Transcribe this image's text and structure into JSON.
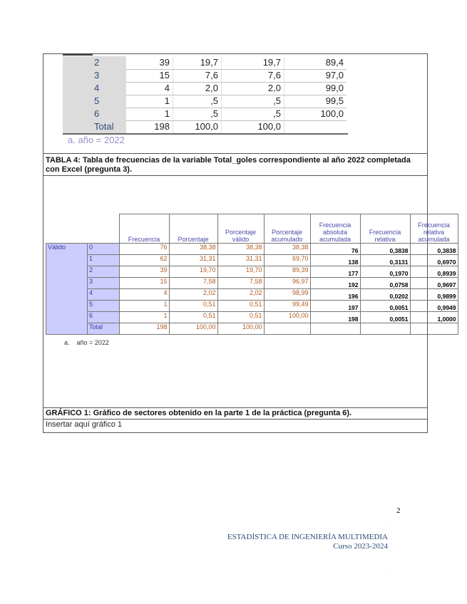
{
  "spss_table": {
    "rows": [
      {
        "label": "2",
        "frecuencia": "39",
        "porcentaje": "19,7",
        "valido": "19,7",
        "acumulado": "89,4"
      },
      {
        "label": "3",
        "frecuencia": "15",
        "porcentaje": "7,6",
        "valido": "7,6",
        "acumulado": "97,0"
      },
      {
        "label": "4",
        "frecuencia": "4",
        "porcentaje": "2,0",
        "valido": "2,0",
        "acumulado": "99,0"
      },
      {
        "label": "5",
        "frecuencia": "1",
        "porcentaje": ",5",
        "valido": ",5",
        "acumulado": "99,5"
      },
      {
        "label": "6",
        "frecuencia": "1",
        "porcentaje": ",5",
        "valido": ",5",
        "acumulado": "100,0"
      },
      {
        "label": "Total",
        "frecuencia": "198",
        "porcentaje": "100,0",
        "valido": "100,0",
        "acumulado": ""
      }
    ],
    "footnote": "a.  año = 2022"
  },
  "tabla4_caption": "TABLA 4: Tabla de frecuencias de la variable Total_goles correspondiente al año 2022 completada con Excel (pregunta 3).",
  "excel_table": {
    "headers": [
      "Frecuencia",
      "Porcentaje",
      "Porcentaje válido",
      "Porcentaje acumulado",
      "Frecuencia absoluta acumulada",
      "Frecuencia relativa",
      "Frecuencia relativa acumulada"
    ],
    "group_label": "Válido",
    "rows": [
      {
        "label": "0",
        "f": "76",
        "p": "38,38",
        "pv": "38,38",
        "pa": "38,38",
        "faa": "76",
        "fr": "0,3838",
        "fra": "0,3838"
      },
      {
        "label": "1",
        "f": "62",
        "p": "31,31",
        "pv": "31,31",
        "pa": "69,70",
        "faa": "138",
        "fr": "0,3131",
        "fra": "0,6970"
      },
      {
        "label": "2",
        "f": "39",
        "p": "19,70",
        "pv": "19,70",
        "pa": "89,39",
        "faa": "177",
        "fr": "0,1970",
        "fra": "0,8939"
      },
      {
        "label": "3",
        "f": "15",
        "p": "7,58",
        "pv": "7,58",
        "pa": "96,97",
        "faa": "192",
        "fr": "0,0758",
        "fra": "0,9697"
      },
      {
        "label": "4",
        "f": "4",
        "p": "2,02",
        "pv": "2,02",
        "pa": "98,99",
        "faa": "196",
        "fr": "0,0202",
        "fra": "0,9899"
      },
      {
        "label": "5",
        "f": "1",
        "p": "0,51",
        "pv": "0,51",
        "pa": "99,49",
        "faa": "197",
        "fr": "0,0051",
        "fra": "0,9949"
      },
      {
        "label": "6",
        "f": "1",
        "p": "0,51",
        "pv": "0,51",
        "pa": "100,00",
        "faa": "198",
        "fr": "0,0051",
        "fra": "1,0000"
      },
      {
        "label": "Total",
        "f": "198",
        "p": "100,00",
        "pv": "100,00",
        "pa": "",
        "faa": "",
        "fr": "",
        "fra": ""
      }
    ],
    "footnote_a": "a.",
    "footnote_text": "año = 2022"
  },
  "grafico1_caption": "GRÁFICO 1: Gráfico de sectores obtenido en la parte 1 de la práctica (pregunta 6).",
  "grafico1_placeholder": "Insertar aquí gráfico 1",
  "footer": {
    "page_number": "2",
    "title": "ESTADÍSTICA DE INGENIERÍA MULTIMEDIA",
    "course": "Curso 2023-2024"
  }
}
